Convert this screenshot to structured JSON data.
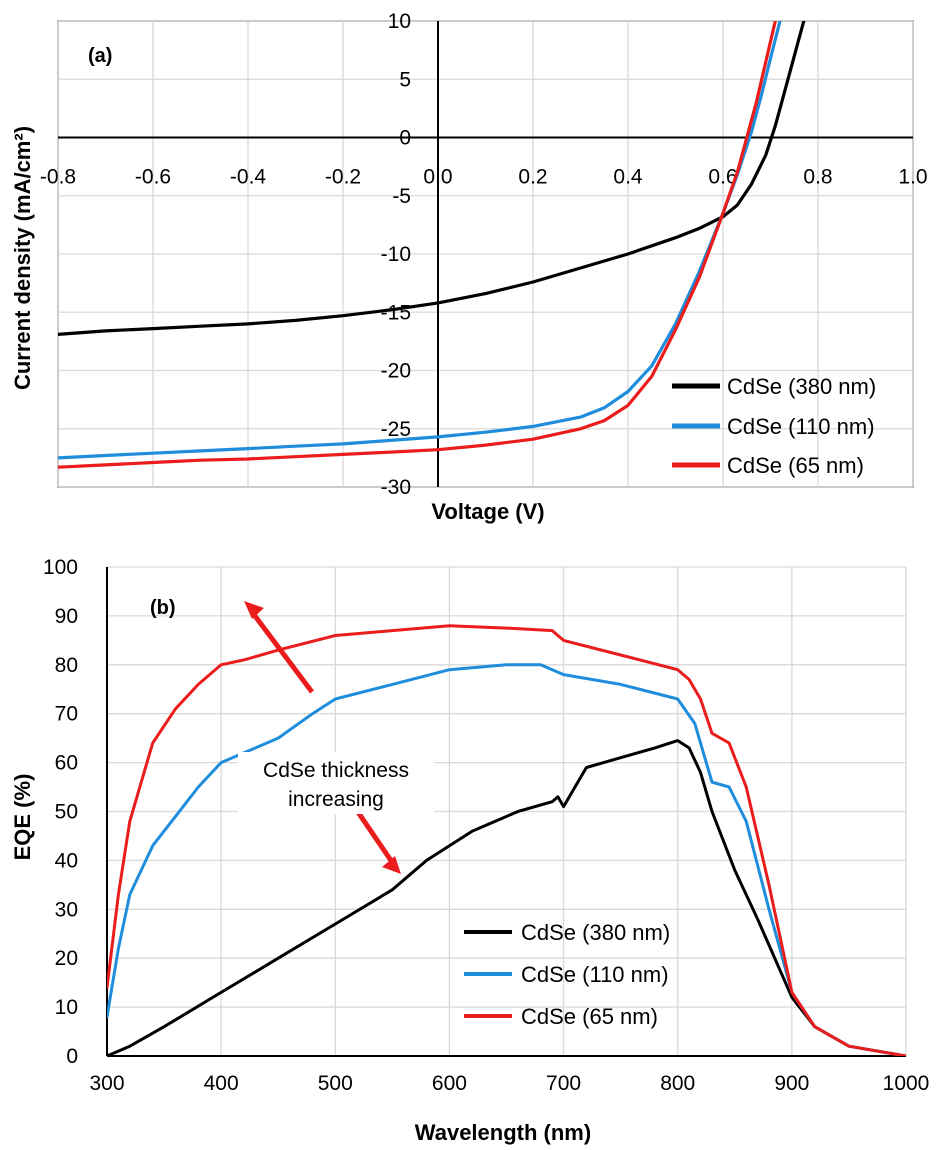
{
  "colors": {
    "s380": "#000000",
    "s110": "#1f8ddb",
    "s65": "#ea1c1c"
  },
  "chart_data": [
    {
      "type": "line",
      "panel_label": "(a)",
      "xlabel": "Voltage (V)",
      "ylabel": "Current density (mA/cm²)",
      "xlim": [
        -0.8,
        1.0
      ],
      "ylim": [
        -30,
        10
      ],
      "x_ticks": [
        "-0.8",
        "-0.6",
        "-0.4",
        "-0.2",
        "0.0",
        "0.2",
        "0.4",
        "0.6",
        "0.8",
        "1.0"
      ],
      "y_ticks": [
        "10",
        "5",
        "0",
        "-5",
        "-10",
        "-15",
        "-20",
        "-25",
        "-30"
      ],
      "grid": true,
      "legend_position": "bottom-right",
      "series": [
        {
          "name": "CdSe (380 nm)",
          "color": "#000000",
          "x": [
            -0.8,
            -0.7,
            -0.6,
            -0.5,
            -0.4,
            -0.3,
            -0.2,
            -0.1,
            0.0,
            0.1,
            0.2,
            0.3,
            0.4,
            0.5,
            0.55,
            0.6,
            0.63,
            0.66,
            0.69,
            0.71,
            0.73,
            0.75,
            0.77
          ],
          "y": [
            -16.9,
            -16.6,
            -16.4,
            -16.2,
            -16.0,
            -15.7,
            -15.3,
            -14.8,
            -14.2,
            -13.4,
            -12.4,
            -11.2,
            -10.0,
            -8.6,
            -7.8,
            -6.8,
            -5.8,
            -4.0,
            -1.5,
            1.0,
            4.0,
            7.0,
            10.0
          ]
        },
        {
          "name": "CdSe (110 nm)",
          "color": "#1f8ddb",
          "x": [
            -0.8,
            -0.7,
            -0.6,
            -0.5,
            -0.4,
            -0.3,
            -0.2,
            -0.1,
            0.0,
            0.1,
            0.2,
            0.3,
            0.35,
            0.4,
            0.45,
            0.5,
            0.55,
            0.6,
            0.63,
            0.66,
            0.68,
            0.7,
            0.72
          ],
          "y": [
            -27.5,
            -27.3,
            -27.1,
            -26.9,
            -26.7,
            -26.5,
            -26.3,
            -26.0,
            -25.7,
            -25.3,
            -24.8,
            -24.0,
            -23.2,
            -21.8,
            -19.6,
            -16.0,
            -11.5,
            -6.5,
            -3.2,
            0.5,
            3.5,
            6.8,
            10.0
          ]
        },
        {
          "name": "CdSe (65 nm)",
          "color": "#ea1c1c",
          "x": [
            -0.8,
            -0.7,
            -0.6,
            -0.5,
            -0.4,
            -0.3,
            -0.2,
            -0.1,
            0.0,
            0.1,
            0.2,
            0.3,
            0.35,
            0.4,
            0.45,
            0.5,
            0.55,
            0.6,
            0.63,
            0.65,
            0.67,
            0.69,
            0.71
          ],
          "y": [
            -28.3,
            -28.1,
            -27.9,
            -27.7,
            -27.6,
            -27.4,
            -27.2,
            -27.0,
            -26.8,
            -26.4,
            -25.9,
            -25.0,
            -24.3,
            -23.0,
            -20.5,
            -16.5,
            -12.0,
            -6.5,
            -3.0,
            0.0,
            3.0,
            6.5,
            10.0
          ]
        }
      ]
    },
    {
      "type": "line",
      "panel_label": "(b)",
      "xlabel": "Wavelength (nm)",
      "ylabel": "EQE (%)",
      "xlim": [
        300,
        1000
      ],
      "ylim": [
        0,
        100
      ],
      "x_ticks": [
        "300",
        "400",
        "500",
        "600",
        "700",
        "800",
        "900",
        "1000"
      ],
      "y_ticks": [
        "100",
        "90",
        "80",
        "70",
        "60",
        "50",
        "40",
        "30",
        "20",
        "10",
        "0"
      ],
      "grid": true,
      "legend_position": "bottom-right",
      "annotation": {
        "line1": "CdSe thickness",
        "line2": "increasing"
      },
      "series": [
        {
          "name": "CdSe (380 nm)",
          "color": "#000000",
          "x": [
            300,
            320,
            350,
            400,
            450,
            500,
            550,
            580,
            620,
            660,
            690,
            695,
            700,
            710,
            720,
            750,
            780,
            800,
            810,
            820,
            830,
            850,
            870,
            900,
            920,
            950,
            1000
          ],
          "y": [
            0,
            2,
            6,
            13,
            20,
            27,
            34,
            40,
            46,
            50,
            52,
            53,
            51,
            55,
            59,
            61,
            63,
            64.5,
            63,
            58,
            50,
            38,
            28,
            12,
            6,
            2,
            0
          ]
        },
        {
          "name": "CdSe (110 nm)",
          "color": "#1f8ddb",
          "x": [
            300,
            310,
            320,
            340,
            360,
            380,
            400,
            420,
            450,
            480,
            500,
            550,
            600,
            650,
            680,
            700,
            750,
            800,
            815,
            830,
            845,
            860,
            880,
            900,
            920,
            950,
            1000
          ],
          "y": [
            8,
            22,
            33,
            43,
            49,
            55,
            60,
            62,
            65,
            70,
            73,
            76,
            79,
            80,
            80,
            78,
            76,
            73,
            68,
            56,
            55,
            48,
            30,
            13,
            6,
            2,
            0
          ]
        },
        {
          "name": "CdSe (65 nm)",
          "color": "#ea1c1c",
          "x": [
            300,
            310,
            320,
            340,
            360,
            380,
            400,
            420,
            450,
            500,
            550,
            600,
            650,
            690,
            700,
            750,
            800,
            810,
            820,
            830,
            845,
            860,
            880,
            900,
            920,
            950,
            1000
          ],
          "y": [
            14,
            33,
            48,
            64,
            71,
            76,
            80,
            81,
            83,
            86,
            87,
            88,
            87.5,
            87,
            85,
            82,
            79,
            77,
            73,
            66,
            64,
            55,
            35,
            13,
            6,
            2,
            0
          ]
        }
      ]
    }
  ]
}
